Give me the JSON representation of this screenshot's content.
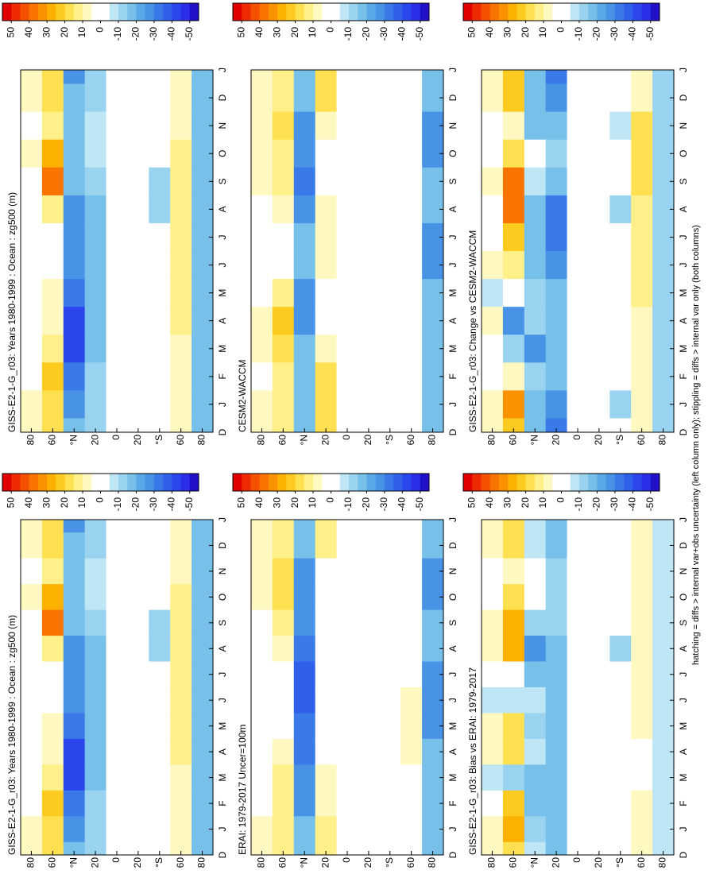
{
  "caption": "hatching = diffs > internal var+obs uncertainty (left column only); stippling = diffs > internal var only (both columns)",
  "colorscale": {
    "lim": [
      55,
      -55
    ],
    "colors": [
      "#e00000",
      "#ee2a00",
      "#f55000",
      "#f87300",
      "#fa9200",
      "#fcb000",
      "#fdca20",
      "#fee050",
      "#fff08a",
      "#fff8c0",
      "#ffffff",
      "#ffffff",
      "#bfe6f5",
      "#9ad3f0",
      "#77c0ea",
      "#5aa9e6",
      "#4893e6",
      "#3a7ae8",
      "#3060ea",
      "#2a46ec",
      "#2a2ee6",
      "#2010c8"
    ]
  },
  "chart_data": [
    {
      "type": "heatmap",
      "title": "GISS-E2-1-G_r03: Years 1980-1999 : Ocean : zg500 (m)",
      "categories": [
        "D",
        "J",
        "F",
        "M",
        "A",
        "M",
        "J",
        "J",
        "A",
        "S",
        "O",
        "N",
        "D",
        "J"
      ],
      "y": [
        80,
        60,
        40,
        20,
        0,
        -20,
        -40,
        -60,
        -80
      ],
      "ylim": [
        90,
        -90
      ],
      "yticks": [
        80,
        60,
        {
          "value": 40,
          "label": "°N"
        },
        20,
        0,
        {
          "value": -20,
          "label": "20"
        },
        {
          "value": -40,
          "label": "°S"
        },
        {
          "value": -60,
          "label": "60"
        },
        {
          "value": -80,
          "label": "80"
        }
      ],
      "colorbar_ticks": [
        50,
        40,
        30,
        20,
        10,
        0,
        -10,
        -20,
        -30,
        -40,
        -50
      ],
      "values": [
        [
          10,
          10,
          0,
          0,
          0,
          0,
          0,
          0,
          0,
          5,
          10,
          5,
          10,
          10
        ],
        [
          20,
          20,
          25,
          15,
          10,
          10,
          5,
          5,
          15,
          40,
          30,
          15,
          20,
          20
        ],
        [
          -20,
          -25,
          -30,
          -40,
          -40,
          -30,
          -25,
          -25,
          -25,
          -20,
          -15,
          -15,
          -20,
          -25
        ],
        [
          -10,
          -10,
          -10,
          -15,
          -15,
          -20,
          -20,
          -15,
          -15,
          -10,
          -5,
          -5,
          -10,
          -10
        ],
        [
          0,
          0,
          0,
          0,
          0,
          0,
          0,
          0,
          0,
          0,
          0,
          0,
          0,
          0
        ],
        [
          0,
          0,
          0,
          0,
          0,
          0,
          0,
          0,
          0,
          0,
          0,
          0,
          0,
          0
        ],
        [
          0,
          0,
          0,
          0,
          0,
          0,
          0,
          0,
          -10,
          -10,
          0,
          0,
          0,
          0
        ],
        [
          10,
          10,
          10,
          10,
          15,
          15,
          15,
          15,
          15,
          15,
          15,
          10,
          10,
          10
        ],
        [
          -20,
          -20,
          -20,
          -20,
          -20,
          -20,
          -20,
          -20,
          -20,
          -20,
          -20,
          -20,
          -20,
          -20
        ]
      ]
    },
    {
      "type": "heatmap",
      "title": "GISS-E2-1-G_r03: Years 1980-1999 : Ocean : zg500 (m)",
      "categories": [
        "D",
        "J",
        "F",
        "M",
        "A",
        "M",
        "J",
        "J",
        "A",
        "S",
        "O",
        "N",
        "D",
        "J"
      ],
      "y": [
        80,
        60,
        40,
        20,
        0,
        -20,
        -40,
        -60,
        -80
      ],
      "ylim": [
        90,
        -90
      ],
      "yticks": [
        80,
        60,
        {
          "value": 40,
          "label": "°N"
        },
        20,
        0,
        {
          "value": -20,
          "label": "20"
        },
        {
          "value": -40,
          "label": "°S"
        },
        {
          "value": -60,
          "label": "60"
        },
        {
          "value": -80,
          "label": "80"
        }
      ],
      "colorbar_ticks": [
        50,
        40,
        30,
        20,
        10,
        0,
        -10,
        -20,
        -30,
        -40,
        -50
      ],
      "values": [
        [
          10,
          10,
          0,
          0,
          0,
          0,
          0,
          0,
          0,
          5,
          10,
          5,
          10,
          10
        ],
        [
          20,
          20,
          25,
          15,
          10,
          10,
          5,
          5,
          15,
          40,
          30,
          15,
          20,
          20
        ],
        [
          -20,
          -25,
          -30,
          -40,
          -40,
          -30,
          -25,
          -25,
          -25,
          -20,
          -15,
          -15,
          -20,
          -25
        ],
        [
          -10,
          -10,
          -10,
          -15,
          -15,
          -20,
          -20,
          -15,
          -15,
          -10,
          -5,
          -5,
          -10,
          -10
        ],
        [
          0,
          0,
          0,
          0,
          0,
          0,
          0,
          0,
          0,
          0,
          0,
          0,
          0,
          0
        ],
        [
          0,
          0,
          0,
          0,
          0,
          0,
          0,
          0,
          0,
          0,
          0,
          0,
          0,
          0
        ],
        [
          0,
          0,
          0,
          0,
          0,
          0,
          0,
          0,
          -10,
          -10,
          0,
          0,
          0,
          0
        ],
        [
          10,
          10,
          10,
          10,
          15,
          15,
          15,
          15,
          15,
          15,
          15,
          10,
          10,
          10
        ],
        [
          -20,
          -20,
          -20,
          -20,
          -20,
          -20,
          -20,
          -20,
          -20,
          -20,
          -20,
          -20,
          -20,
          -20
        ]
      ]
    },
    {
      "type": "heatmap",
      "title": "ERAI: 1979-2017 Uncer=100m",
      "categories": [
        "D",
        "J",
        "F",
        "M",
        "A",
        "M",
        "J",
        "J",
        "A",
        "S",
        "O",
        "N",
        "D",
        "J"
      ],
      "y": [
        80,
        60,
        40,
        20,
        0,
        -20,
        -40,
        -60,
        -80
      ],
      "ylim": [
        90,
        -90
      ],
      "yticks": [
        80,
        60,
        {
          "value": 40,
          "label": "°N"
        },
        20,
        0,
        {
          "value": -20,
          "label": "20"
        },
        {
          "value": -40,
          "label": "°S"
        },
        {
          "value": -60,
          "label": "60"
        },
        {
          "value": -80,
          "label": "80"
        }
      ],
      "colorbar_ticks": [
        50,
        40,
        30,
        20,
        10,
        0,
        -10,
        -20,
        -30,
        -40,
        -50
      ],
      "values": [
        [
          10,
          10,
          5,
          5,
          5,
          0,
          0,
          0,
          0,
          5,
          10,
          10,
          10,
          10
        ],
        [
          15,
          15,
          15,
          15,
          10,
          5,
          5,
          5,
          10,
          15,
          20,
          20,
          15,
          15
        ],
        [
          -20,
          -20,
          -25,
          -25,
          -30,
          -30,
          -35,
          -35,
          -30,
          -25,
          -25,
          -25,
          -20,
          -20
        ],
        [
          15,
          15,
          10,
          10,
          5,
          0,
          0,
          0,
          0,
          0,
          0,
          5,
          15,
          15
        ],
        [
          0,
          0,
          0,
          0,
          0,
          0,
          0,
          0,
          0,
          0,
          0,
          0,
          0,
          0
        ],
        [
          0,
          0,
          0,
          0,
          0,
          0,
          0,
          0,
          0,
          0,
          0,
          0,
          0,
          0
        ],
        [
          0,
          0,
          0,
          0,
          0,
          0,
          0,
          0,
          0,
          0,
          0,
          0,
          0,
          0
        ],
        [
          5,
          5,
          5,
          5,
          10,
          10,
          10,
          5,
          5,
          5,
          5,
          5,
          5,
          5
        ],
        [
          -20,
          -20,
          -20,
          -20,
          -20,
          -25,
          -25,
          -25,
          -20,
          -20,
          -25,
          -25,
          -20,
          -20
        ]
      ]
    },
    {
      "type": "heatmap",
      "title": "CESM2-WACCM",
      "categories": [
        "D",
        "J",
        "F",
        "M",
        "A",
        "M",
        "J",
        "J",
        "A",
        "S",
        "O",
        "N",
        "D",
        "J"
      ],
      "y": [
        80,
        60,
        40,
        20,
        0,
        -20,
        -40,
        -60,
        -80
      ],
      "ylim": [
        90,
        -90
      ],
      "yticks": [
        80,
        60,
        {
          "value": 40,
          "label": "°N"
        },
        20,
        0,
        {
          "value": -20,
          "label": "20"
        },
        {
          "value": -40,
          "label": "°S"
        },
        {
          "value": -60,
          "label": "60"
        },
        {
          "value": -80,
          "label": "80"
        }
      ],
      "colorbar_ticks": [
        50,
        40,
        30,
        20,
        10,
        0,
        -10,
        -20,
        -30,
        -40,
        -50
      ],
      "values": [
        [
          10,
          10,
          5,
          10,
          10,
          5,
          0,
          0,
          5,
          10,
          10,
          10,
          10,
          10
        ],
        [
          15,
          15,
          15,
          20,
          25,
          15,
          5,
          5,
          10,
          15,
          15,
          20,
          15,
          15
        ],
        [
          -15,
          -20,
          -20,
          -20,
          -25,
          -25,
          -20,
          -20,
          -25,
          -30,
          -25,
          -25,
          -15,
          -15
        ],
        [
          20,
          20,
          20,
          10,
          5,
          0,
          10,
          10,
          10,
          5,
          5,
          10,
          20,
          20
        ],
        [
          0,
          0,
          0,
          0,
          0,
          0,
          0,
          0,
          0,
          0,
          0,
          0,
          0,
          0
        ],
        [
          0,
          0,
          0,
          0,
          0,
          0,
          0,
          0,
          0,
          0,
          0,
          0,
          0,
          0
        ],
        [
          0,
          0,
          0,
          0,
          0,
          0,
          0,
          0,
          0,
          0,
          0,
          0,
          0,
          0
        ],
        [
          0,
          0,
          0,
          0,
          0,
          0,
          0,
          0,
          0,
          0,
          0,
          0,
          0,
          0
        ],
        [
          -20,
          -20,
          -15,
          -15,
          -20,
          -20,
          -25,
          -25,
          -20,
          -20,
          -25,
          -25,
          -20,
          -20
        ]
      ]
    },
    {
      "type": "heatmap",
      "title": "GISS-E2-1-G_r03: Bias vs ERAI: 1979-2017",
      "categories": [
        "D",
        "J",
        "F",
        "M",
        "A",
        "M",
        "J",
        "J",
        "A",
        "S",
        "O",
        "N",
        "D",
        "J"
      ],
      "y": [
        80,
        60,
        40,
        20,
        0,
        -20,
        -40,
        -60,
        -80
      ],
      "ylim": [
        90,
        -90
      ],
      "yticks": [
        80,
        60,
        {
          "value": 40,
          "label": "°N"
        },
        20,
        0,
        {
          "value": -20,
          "label": "20"
        },
        {
          "value": -40,
          "label": "°S"
        },
        {
          "value": -60,
          "label": "60"
        },
        {
          "value": -80,
          "label": "80"
        }
      ],
      "colorbar_ticks": [
        50,
        40,
        30,
        20,
        10,
        0,
        -10,
        -20,
        -30,
        -40,
        -50
      ],
      "values": [
        [
          10,
          10,
          0,
          -5,
          10,
          10,
          -5,
          0,
          10,
          10,
          5,
          5,
          10,
          10
        ],
        [
          20,
          30,
          25,
          -10,
          20,
          20,
          -5,
          5,
          30,
          30,
          20,
          10,
          20,
          20
        ],
        [
          -5,
          -10,
          -15,
          -20,
          -5,
          -10,
          -5,
          -20,
          -25,
          -10,
          0,
          0,
          -5,
          -5
        ],
        [
          -20,
          -20,
          -20,
          -15,
          -15,
          -15,
          -20,
          -20,
          -15,
          -10,
          -10,
          -10,
          -20,
          -20
        ],
        [
          0,
          0,
          0,
          0,
          0,
          0,
          0,
          0,
          0,
          0,
          0,
          0,
          0,
          0
        ],
        [
          0,
          0,
          0,
          0,
          0,
          0,
          0,
          0,
          0,
          0,
          0,
          0,
          0,
          0
        ],
        [
          0,
          0,
          0,
          0,
          0,
          0,
          0,
          0,
          -10,
          0,
          0,
          0,
          0,
          0
        ],
        [
          10,
          10,
          10,
          5,
          5,
          10,
          10,
          10,
          10,
          10,
          10,
          10,
          10,
          10
        ],
        [
          -5,
          -5,
          -5,
          -5,
          -5,
          -5,
          -5,
          -5,
          -5,
          -5,
          -5,
          -5,
          -5,
          -5
        ]
      ]
    },
    {
      "type": "heatmap",
      "title": "GISS-E2-1-G_r03: Change vs CESM2-WACCM",
      "categories": [
        "D",
        "J",
        "F",
        "M",
        "A",
        "M",
        "J",
        "J",
        "A",
        "S",
        "O",
        "N",
        "D",
        "J"
      ],
      "y": [
        80,
        60,
        40,
        20,
        0,
        -20,
        -40,
        -60,
        -80
      ],
      "ylim": [
        90,
        -90
      ],
      "yticks": [
        80,
        60,
        {
          "value": 40,
          "label": "°N"
        },
        20,
        0,
        {
          "value": -20,
          "label": "20"
        },
        {
          "value": -40,
          "label": "°S"
        },
        {
          "value": -60,
          "label": "60"
        },
        {
          "value": -80,
          "label": "80"
        }
      ],
      "colorbar_ticks": [
        50,
        40,
        30,
        20,
        10,
        0,
        -10,
        -20,
        -30,
        -40,
        -50
      ],
      "values": [
        [
          10,
          10,
          0,
          0,
          10,
          -5,
          10,
          5,
          5,
          10,
          5,
          5,
          10,
          10
        ],
        [
          25,
          35,
          10,
          -10,
          -25,
          0,
          15,
          25,
          40,
          40,
          20,
          10,
          25,
          25
        ],
        [
          -15,
          -15,
          -10,
          -25,
          -10,
          -10,
          -20,
          -20,
          -20,
          -5,
          0,
          -15,
          -15,
          -15
        ],
        [
          -30,
          -25,
          -20,
          -15,
          -20,
          -20,
          -25,
          -30,
          -30,
          -20,
          -10,
          -15,
          -25,
          -30
        ],
        [
          0,
          0,
          0,
          0,
          0,
          0,
          0,
          0,
          0,
          0,
          0,
          0,
          0,
          0
        ],
        [
          0,
          0,
          0,
          0,
          0,
          0,
          0,
          0,
          0,
          0,
          0,
          0,
          0,
          0
        ],
        [
          0,
          -10,
          0,
          0,
          0,
          0,
          0,
          0,
          -10,
          0,
          0,
          -5,
          0,
          0
        ],
        [
          10,
          10,
          10,
          10,
          10,
          15,
          15,
          15,
          15,
          20,
          20,
          20,
          10,
          10
        ],
        [
          -10,
          -10,
          -10,
          -10,
          -10,
          -10,
          -10,
          -10,
          -10,
          -10,
          -10,
          -10,
          -10,
          -10
        ]
      ]
    }
  ]
}
